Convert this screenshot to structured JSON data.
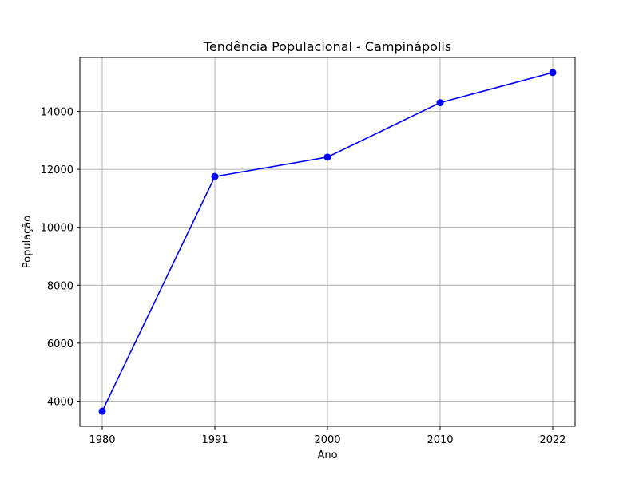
{
  "chart_data": {
    "type": "line",
    "title": "Tendência Populacional - Campinápolis",
    "xlabel": "Ano",
    "ylabel": "População",
    "categories": [
      "1980",
      "1991",
      "2000",
      "2010",
      "2022"
    ],
    "series": [
      {
        "values": [
          3650,
          11750,
          12420,
          14300,
          15340
        ]
      }
    ],
    "ylim": [
      3130,
      15860
    ],
    "yticks": [
      4000,
      6000,
      8000,
      10000,
      12000,
      14000
    ],
    "ytick_labels": [
      "4000",
      "6000",
      "8000",
      "10000",
      "12000",
      "14000"
    ],
    "grid": true,
    "legend": "none",
    "colors": {
      "line": "#0000ff",
      "marker": "#0000ff",
      "grid": "#b0b0b0",
      "axes": "#000000"
    }
  }
}
